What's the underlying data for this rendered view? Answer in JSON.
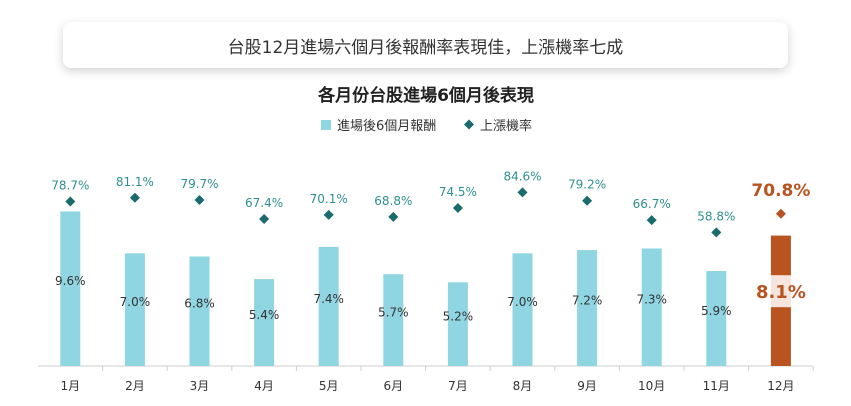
{
  "banner": {
    "text": "台股12月進場六個月後報酬率表現佳，上漲機率七成"
  },
  "colors": {
    "bar": "#8fd5e2",
    "bar_highlight": "#b9531f",
    "marker": "#1a6b6b",
    "marker_highlight": "#b9531f",
    "rate_label": "#2f8f8f",
    "rate_label_highlight": "#b9531f",
    "axis": "#cfcfcf",
    "text": "#333333"
  },
  "chart_data": {
    "type": "bar",
    "title": "各月份台股進場6個月後表現",
    "legend": [
      "進場後6個月報酬",
      "上漲機率"
    ],
    "legend_placement": "top-center",
    "categories": [
      "1月",
      "2月",
      "3月",
      "4月",
      "5月",
      "6月",
      "7月",
      "8月",
      "9月",
      "10月",
      "11月",
      "12月"
    ],
    "series": [
      {
        "name": "進場後6個月報酬",
        "type": "bar",
        "values": [
          9.6,
          7.0,
          6.8,
          5.4,
          7.4,
          5.7,
          5.2,
          7.0,
          7.2,
          7.3,
          5.9,
          8.1
        ],
        "labels": [
          "9.6%",
          "7.0%",
          "6.8%",
          "5.4%",
          "7.4%",
          "5.7%",
          "5.2%",
          "7.0%",
          "7.2%",
          "7.3%",
          "5.9%",
          "8.1%"
        ]
      },
      {
        "name": "上漲機率",
        "type": "scatter",
        "values": [
          78.7,
          81.1,
          79.7,
          67.4,
          70.1,
          68.8,
          74.5,
          84.6,
          79.2,
          66.7,
          58.8,
          70.8
        ],
        "labels": [
          "78.7%",
          "81.1%",
          "79.7%",
          "67.4%",
          "70.1%",
          "68.8%",
          "74.5%",
          "84.6%",
          "79.2%",
          "66.7%",
          "58.8%",
          "70.8%"
        ]
      }
    ],
    "highlight_index": 11,
    "grid": false
  }
}
